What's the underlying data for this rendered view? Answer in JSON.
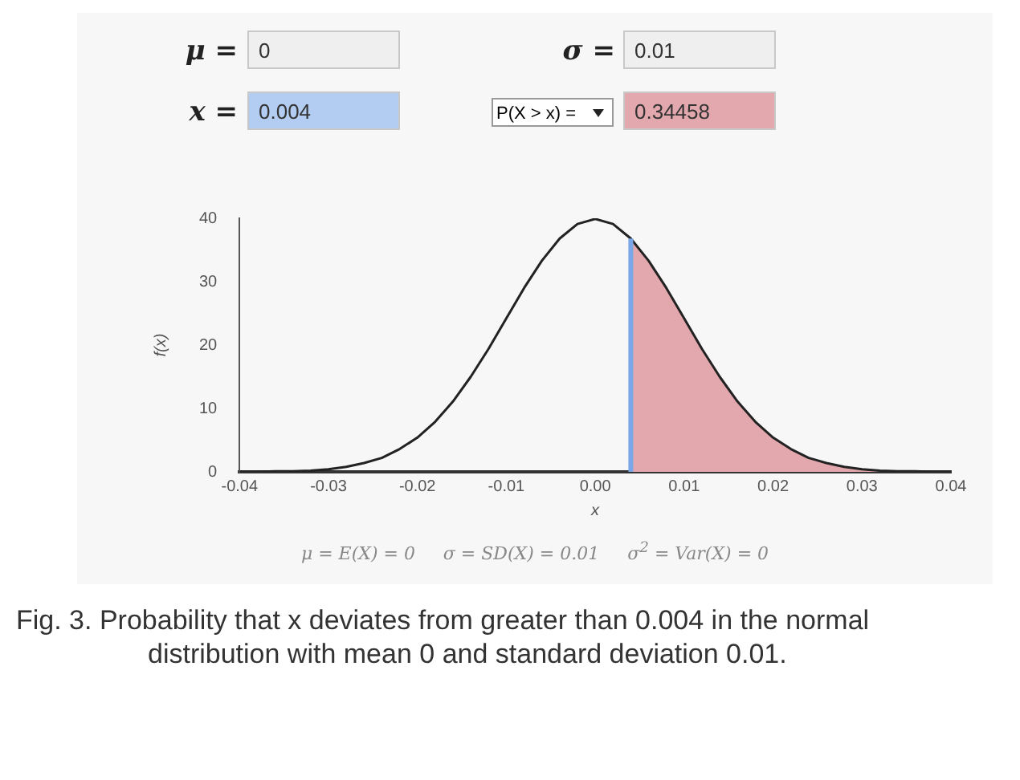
{
  "chart_data": {
    "type": "line",
    "xlabel": "x",
    "ylabel": "f(x)",
    "marker": "none",
    "legend": false,
    "xlim": [
      -0.04,
      0.04
    ],
    "ylim": [
      0,
      40
    ],
    "xticks": [
      {
        "value": -0.04,
        "label": "-0.04"
      },
      {
        "value": -0.03,
        "label": "-0.03"
      },
      {
        "value": -0.02,
        "label": "-0.02"
      },
      {
        "value": -0.01,
        "label": "-0.01"
      },
      {
        "value": 0,
        "label": "0.00"
      },
      {
        "value": 0.01,
        "label": "0.01"
      },
      {
        "value": 0.02,
        "label": "0.02"
      },
      {
        "value": 0.03,
        "label": "0.03"
      },
      {
        "value": 0.04,
        "label": "0.04"
      }
    ],
    "yticks": [
      0,
      10,
      20,
      30,
      40
    ],
    "series": [
      {
        "type": "area",
        "color": "#e3a8ad",
        "x": [
          0.004,
          0.006,
          0.008,
          0.01,
          0.012,
          0.014,
          0.016,
          0.018,
          0.02,
          0.022,
          0.024,
          0.026,
          0.028,
          0.03,
          0.032,
          0.034,
          0.036,
          0.038,
          0.04
        ],
        "values": [
          36.8,
          33.3,
          29.0,
          24.2,
          19.4,
          15.0,
          11.1,
          7.9,
          5.4,
          3.6,
          2.2,
          1.4,
          0.8,
          0.4,
          0.2,
          0.1,
          0.1,
          0.0,
          0.0
        ]
      },
      {
        "color": "#222222",
        "x": [
          -0.04,
          -0.038,
          -0.036,
          -0.034,
          -0.032,
          -0.03,
          -0.028,
          -0.026,
          -0.024,
          -0.022,
          -0.02,
          -0.018,
          -0.016,
          -0.014,
          -0.012,
          -0.01,
          -0.008,
          -0.006,
          -0.004,
          -0.002,
          0,
          0.002,
          0.004,
          0.006,
          0.008,
          0.01,
          0.012,
          0.014,
          0.016,
          0.018,
          0.02,
          0.022,
          0.024,
          0.026,
          0.028,
          0.03,
          0.032,
          0.034,
          0.036,
          0.038,
          0.04
        ],
        "values": [
          0.0,
          0.0,
          0.1,
          0.1,
          0.2,
          0.4,
          0.8,
          1.4,
          2.2,
          3.6,
          5.4,
          7.9,
          11.1,
          15.0,
          19.4,
          24.2,
          29.0,
          33.3,
          36.8,
          39.1,
          39.9,
          39.1,
          36.8,
          33.3,
          29.0,
          24.2,
          19.4,
          15.0,
          11.1,
          7.9,
          5.4,
          3.6,
          2.2,
          1.4,
          0.8,
          0.4,
          0.2,
          0.1,
          0.1,
          0.0,
          0.0
        ]
      }
    ],
    "ref_lines": [
      {
        "axis": "x",
        "value": 0.004,
        "color": "#7aa7e8"
      }
    ],
    "annotations": [
      "μ =",
      "0",
      "σ =",
      "0.01",
      "x =",
      "0.004",
      "P(X > x) =",
      "0.34458",
      "μ = E(X) = 0     σ = SD(X) = 0.01     σ$^{2}$ = Var(X) = 0",
      "Fig.  3. Probability that x deviates from greater than 0.004 in the normal distribution with mean 0 and standard deviation 0.01."
    ]
  }
}
